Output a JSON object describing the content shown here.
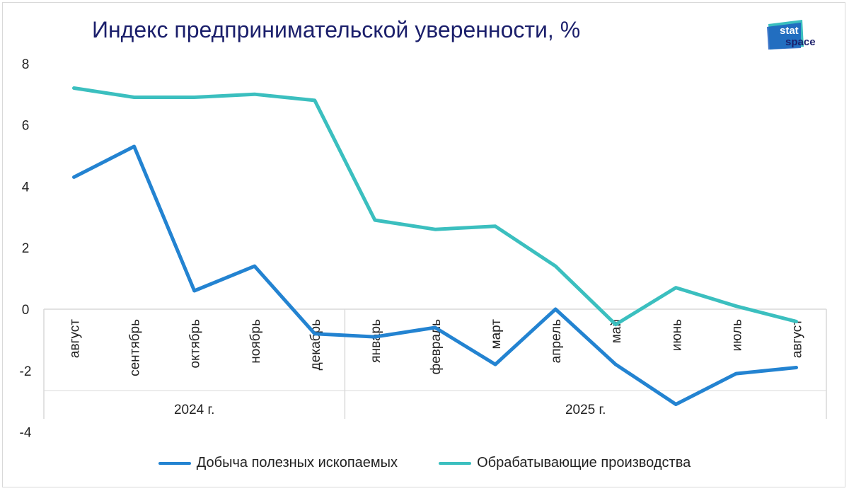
{
  "title": "Индекс предпринимательской уверенности, %",
  "logo": {
    "line1": "stat",
    "line2": "space"
  },
  "colors": {
    "series1": "#2383d1",
    "series2": "#3bbfbf",
    "axis": "#d9d9d9",
    "text": "#222222",
    "title": "#1b1f6b"
  },
  "chart_data": {
    "type": "line",
    "categories": [
      "август",
      "сентябрь",
      "октябрь",
      "ноябрь",
      "декабрь",
      "январь",
      "февраль",
      "март",
      "апрель",
      "май",
      "июнь",
      "июль",
      "август"
    ],
    "groups": [
      {
        "label": "2024 г.",
        "count": 5
      },
      {
        "label": "2025 г.",
        "count": 8
      }
    ],
    "series": [
      {
        "name": "Добыча полезных ископаемых",
        "color": "#2383d1",
        "values": [
          4.3,
          5.3,
          0.6,
          1.4,
          -0.8,
          -0.9,
          -0.6,
          -1.8,
          0.0,
          -1.8,
          -3.1,
          -2.1,
          -1.9
        ]
      },
      {
        "name": "Обрабатывающие производства",
        "color": "#3bbfbf",
        "values": [
          7.2,
          6.9,
          6.9,
          7.0,
          6.8,
          2.9,
          2.6,
          2.7,
          1.4,
          -0.5,
          0.7,
          0.1,
          -0.4
        ]
      }
    ],
    "ylim": [
      -4,
      8
    ],
    "yticks": [
      -4,
      -2,
      0,
      2,
      4,
      6,
      8
    ],
    "grid": false,
    "legend": "bottom"
  }
}
